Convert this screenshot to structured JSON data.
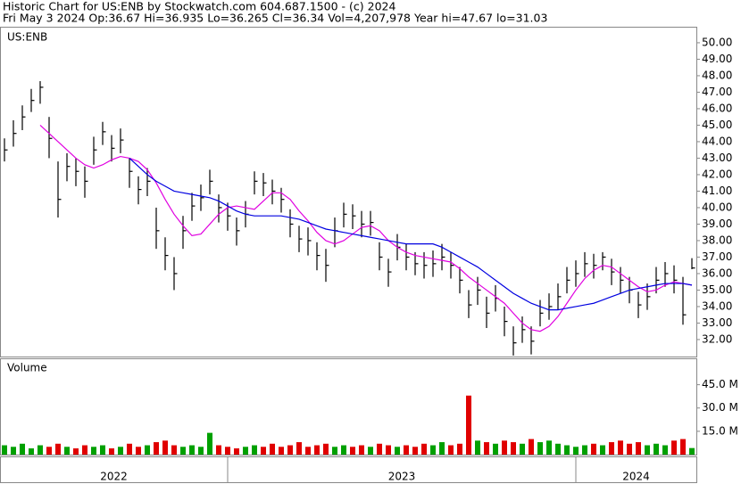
{
  "header": {
    "line1": "Historic Chart for US:ENB by Stockwatch.com 604.687.1500 - (c) 2024",
    "line2": "Fri May  3 2024  Op:36.67  Hi=36.935  Lo=36.265  Cl=36.34  Vol=4,207,978  Year hi=47.67  lo=31.03"
  },
  "chart_data": [
    {
      "type": "ohlc",
      "label": "US:ENB",
      "color": "#000000",
      "xlim": [
        -0.5,
        77.5
      ],
      "ylim": [
        30.97,
        50.97
      ],
      "yticks": [
        {
          "value": 32,
          "label": "32.00"
        },
        {
          "value": 33,
          "label": "33.00"
        },
        {
          "value": 34,
          "label": "34.00"
        },
        {
          "value": 35,
          "label": "35.00"
        },
        {
          "value": 36,
          "label": "36.00"
        },
        {
          "value": 37,
          "label": "37.00"
        },
        {
          "value": 38,
          "label": "38.00"
        },
        {
          "value": 39,
          "label": "39.00"
        },
        {
          "value": 40,
          "label": "40.00"
        },
        {
          "value": 41,
          "label": "41.00"
        },
        {
          "value": 42,
          "label": "42.00"
        },
        {
          "value": 43,
          "label": "43.00"
        },
        {
          "value": 44,
          "label": "44.00"
        },
        {
          "value": 45,
          "label": "45.00"
        },
        {
          "value": 46,
          "label": "46.00"
        },
        {
          "value": 47,
          "label": "47.00"
        },
        {
          "value": 48,
          "label": "48.00"
        },
        {
          "value": 49,
          "label": "49.00"
        },
        {
          "value": 50,
          "label": "50.00"
        }
      ],
      "high": [
        44.2,
        45.3,
        46.2,
        47.2,
        47.67,
        45.5,
        42.8,
        43.3,
        43.0,
        42.5,
        44.3,
        45.2,
        44.4,
        44.8,
        43.0,
        41.9,
        42.4,
        40.0,
        38.2,
        37.0,
        39.5,
        40.9,
        41.4,
        42.3,
        40.8,
        40.3,
        39.4,
        40.4,
        42.2,
        42.1,
        41.7,
        41.2,
        39.9,
        38.9,
        38.8,
        37.9,
        37.5,
        39.4,
        40.3,
        40.2,
        39.8,
        39.8,
        37.9,
        36.9,
        38.4,
        37.8,
        37.3,
        37.3,
        37.4,
        37.8,
        37.3,
        36.4,
        35.0,
        35.8,
        34.6,
        35.3,
        34.0,
        32.8,
        33.4,
        32.8,
        34.4,
        34.8,
        35.4,
        36.4,
        36.8,
        37.3,
        37.2,
        37.3,
        36.9,
        36.4,
        35.8,
        34.9,
        35.4,
        36.4,
        36.7,
        36.5,
        35.8,
        36.935
      ],
      "low": [
        42.8,
        43.7,
        44.7,
        45.8,
        46.3,
        43.0,
        39.4,
        41.6,
        41.3,
        40.6,
        42.6,
        43.8,
        42.8,
        43.3,
        41.2,
        40.2,
        40.7,
        37.5,
        36.2,
        35.0,
        37.5,
        39.2,
        39.8,
        40.8,
        39.1,
        38.6,
        37.7,
        38.8,
        40.8,
        40.7,
        40.2,
        39.7,
        38.2,
        37.3,
        37.1,
        36.2,
        35.5,
        37.6,
        38.8,
        38.7,
        38.2,
        38.3,
        36.2,
        35.2,
        36.8,
        36.2,
        35.9,
        35.7,
        35.8,
        36.2,
        35.7,
        34.8,
        33.3,
        34.1,
        32.7,
        33.7,
        32.2,
        31.03,
        31.8,
        31.1,
        32.8,
        33.2,
        33.8,
        34.8,
        35.2,
        35.8,
        35.7,
        36.2,
        35.3,
        34.8,
        34.2,
        33.3,
        33.8,
        34.8,
        35.2,
        34.8,
        32.9,
        36.265
      ],
      "close": [
        43.5,
        44.5,
        45.5,
        46.5,
        47.3,
        44.2,
        40.5,
        42.5,
        42.2,
        41.6,
        43.5,
        44.6,
        43.6,
        44.1,
        42.2,
        41.1,
        41.6,
        38.6,
        37.1,
        36.0,
        38.6,
        40.1,
        40.6,
        41.6,
        40.0,
        39.5,
        38.6,
        39.6,
        41.6,
        41.5,
        41.0,
        40.5,
        39.0,
        38.1,
        38.0,
        37.1,
        36.5,
        38.6,
        39.6,
        39.5,
        39.0,
        39.1,
        37.0,
        36.1,
        37.6,
        37.0,
        36.6,
        36.5,
        36.6,
        37.0,
        36.5,
        35.6,
        34.1,
        35.0,
        33.6,
        34.5,
        33.1,
        31.8,
        32.6,
        31.9,
        33.6,
        34.0,
        34.6,
        35.6,
        36.0,
        36.6,
        36.5,
        37.0,
        36.1,
        35.6,
        35.0,
        34.1,
        34.6,
        35.6,
        36.0,
        35.6,
        33.5,
        36.34
      ],
      "series": [
        {
          "color": "#e000e0",
          "values": [
            null,
            null,
            null,
            null,
            45.0,
            44.5,
            44.0,
            43.5,
            43.0,
            42.6,
            42.4,
            42.6,
            42.9,
            43.1,
            43.0,
            42.8,
            42.3,
            41.5,
            40.5,
            39.6,
            38.9,
            38.3,
            38.4,
            39.0,
            39.6,
            40.0,
            40.1,
            40.0,
            39.9,
            40.4,
            40.9,
            40.9,
            40.5,
            39.8,
            39.2,
            38.5,
            38.0,
            37.8,
            38.0,
            38.4,
            38.8,
            38.9,
            38.6,
            38.0,
            37.6,
            37.3,
            37.1,
            37.0,
            36.9,
            36.8,
            36.7,
            36.3,
            35.8,
            35.4,
            35.0,
            34.6,
            34.2,
            33.6,
            33.0,
            32.6,
            32.5,
            32.8,
            33.4,
            34.2,
            35.0,
            35.7,
            36.2,
            36.5,
            36.4,
            36.0,
            35.6,
            35.2,
            34.9,
            35.0,
            35.3,
            35.5,
            35.4,
            35.3
          ]
        },
        {
          "color": "#0000e0",
          "values": [
            null,
            null,
            null,
            null,
            null,
            null,
            null,
            null,
            null,
            null,
            null,
            null,
            null,
            null,
            43.0,
            42.5,
            42.0,
            41.6,
            41.3,
            41.0,
            40.9,
            40.8,
            40.7,
            40.6,
            40.4,
            40.1,
            39.8,
            39.6,
            39.5,
            39.5,
            39.5,
            39.5,
            39.4,
            39.3,
            39.1,
            38.9,
            38.7,
            38.6,
            38.5,
            38.4,
            38.3,
            38.2,
            38.1,
            38.0,
            37.9,
            37.8,
            37.8,
            37.8,
            37.8,
            37.6,
            37.3,
            37.0,
            36.7,
            36.4,
            36.0,
            35.6,
            35.2,
            34.8,
            34.5,
            34.2,
            34.0,
            33.8,
            33.8,
            33.9,
            34.0,
            34.1,
            34.2,
            34.4,
            34.6,
            34.8,
            35.0,
            35.1,
            35.2,
            35.3,
            35.4,
            35.4,
            35.4,
            35.3
          ]
        }
      ]
    },
    {
      "type": "volume",
      "label": "Volume",
      "colors": {
        "up": "#00a000",
        "down": "#e00000"
      },
      "xlim": [
        -0.5,
        77.5
      ],
      "ylim": [
        0,
        62
      ],
      "yticks": [
        {
          "value": 15,
          "label": "15.0 M"
        },
        {
          "value": 30,
          "label": "30.0 M"
        },
        {
          "value": 45,
          "label": "45.0 M"
        }
      ],
      "values": [
        6,
        5,
        7,
        4,
        6,
        5,
        7,
        5,
        4,
        6,
        5,
        6,
        4,
        5,
        7,
        5,
        6,
        8,
        9,
        6,
        5,
        6,
        5,
        14,
        6,
        5,
        4,
        5,
        6,
        5,
        7,
        5,
        6,
        8,
        5,
        6,
        7,
        5,
        6,
        5,
        6,
        5,
        7,
        6,
        5,
        6,
        5,
        7,
        6,
        8,
        6,
        7,
        38,
        9,
        8,
        7,
        9,
        8,
        7,
        10,
        8,
        9,
        7,
        6,
        5,
        6,
        7,
        6,
        8,
        9,
        7,
        8,
        6,
        7,
        6,
        9,
        10,
        4.21
      ]
    }
  ],
  "years": [
    {
      "label": "2022",
      "from": -0.5,
      "to": 25
    },
    {
      "label": "2023",
      "from": 25,
      "to": 64
    },
    {
      "label": "2024",
      "from": 64,
      "to": 77.5
    }
  ]
}
